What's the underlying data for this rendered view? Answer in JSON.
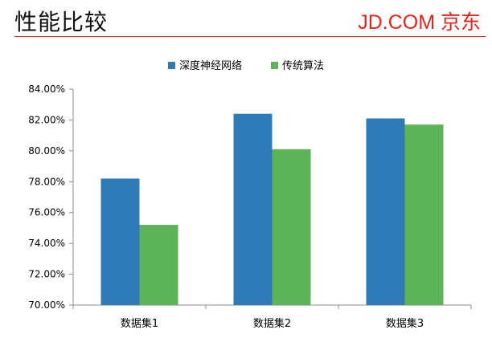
{
  "header": {
    "title": "性能比较",
    "logo_text": "JD.COM 京东"
  },
  "colors": {
    "accent": "#e1251b",
    "series_1": "#2e7bb8",
    "series_2": "#5cb456"
  },
  "chart_data": {
    "type": "bar",
    "title": "",
    "xlabel": "",
    "ylabel": "",
    "categories": [
      "数据集1",
      "数据集2",
      "数据集3"
    ],
    "series": [
      {
        "name": "深度神经网络",
        "values": [
          78.2,
          82.4,
          82.1
        ]
      },
      {
        "name": "传统算法",
        "values": [
          75.2,
          80.1,
          81.7
        ]
      }
    ],
    "ylim": [
      70,
      84
    ],
    "yticks": [
      "70.00%",
      "72.00%",
      "74.00%",
      "76.00%",
      "78.00%",
      "80.00%",
      "82.00%",
      "84.00%"
    ],
    "grid": false,
    "legend_position": "top"
  }
}
